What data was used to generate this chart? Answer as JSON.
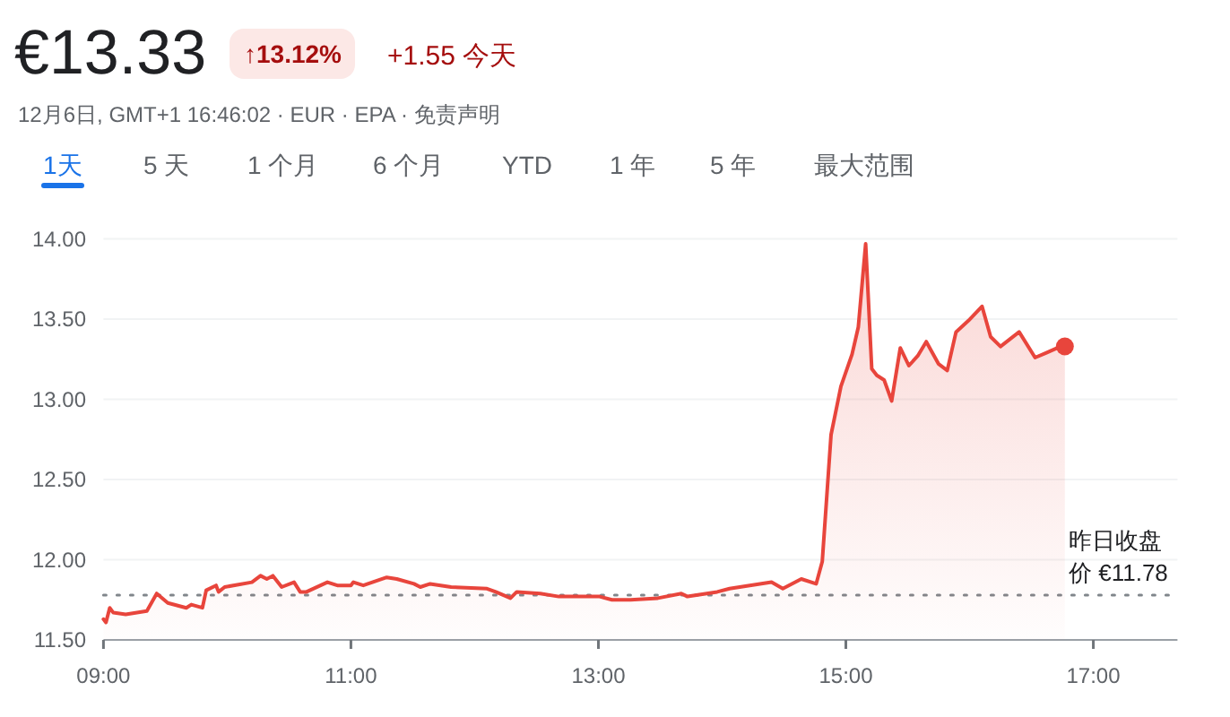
{
  "chart_data": {
    "type": "area",
    "title": "€13.33",
    "subtitle": "12月6日, GMT+1 16:46:02 · EUR · EPA · 免责声明",
    "annotations": [
      "↑13.12%",
      "+1.55 今天",
      "1天",
      "5 天",
      "1 个月",
      "6 个月",
      "YTD",
      "1 年",
      "5 年",
      "最大范围"
    ],
    "x": [
      9.0,
      9.02,
      9.05,
      9.08,
      9.18,
      9.35,
      9.43,
      9.52,
      9.67,
      9.71,
      9.8,
      9.83,
      9.91,
      9.93,
      9.98,
      10.2,
      10.27,
      10.32,
      10.37,
      10.44,
      10.54,
      10.59,
      10.64,
      10.81,
      10.89,
      11.0,
      11.02,
      11.1,
      11.29,
      11.37,
      11.51,
      11.56,
      11.64,
      11.81,
      12.1,
      12.17,
      12.29,
      12.34,
      12.53,
      12.68,
      13.01,
      13.11,
      13.26,
      13.48,
      13.67,
      13.72,
      13.96,
      14.06,
      14.4,
      14.49,
      14.64,
      14.76,
      14.81,
      14.88,
      14.96,
      15.05,
      15.1,
      15.16,
      15.21,
      15.25,
      15.31,
      15.37,
      15.44,
      15.51,
      15.58,
      15.65,
      15.75,
      15.82,
      15.89,
      15.99,
      16.1,
      16.17,
      16.25,
      16.4,
      16.53,
      16.62,
      16.71,
      16.77
    ],
    "series": [
      {
        "color": "#e8453c",
        "values": [
          11.63,
          11.61,
          11.7,
          11.67,
          11.66,
          11.68,
          11.79,
          11.73,
          11.7,
          11.72,
          11.7,
          11.81,
          11.84,
          11.8,
          11.83,
          11.86,
          11.9,
          11.88,
          11.9,
          11.83,
          11.86,
          11.8,
          11.8,
          11.86,
          11.84,
          11.84,
          11.86,
          11.84,
          11.89,
          11.88,
          11.85,
          11.83,
          11.85,
          11.83,
          11.82,
          11.8,
          11.76,
          11.8,
          11.79,
          11.77,
          11.77,
          11.75,
          11.75,
          11.76,
          11.79,
          11.77,
          11.8,
          11.82,
          11.86,
          11.82,
          11.88,
          11.85,
          11.99,
          12.78,
          13.08,
          13.28,
          13.45,
          13.97,
          13.19,
          13.15,
          13.12,
          12.99,
          13.32,
          13.21,
          13.27,
          13.36,
          13.22,
          13.18,
          13.42,
          13.49,
          13.58,
          13.39,
          13.33,
          13.42,
          13.26,
          13.29,
          13.32,
          13.33
        ]
      }
    ],
    "xlim": [
      9,
      17.68
    ],
    "ylim": [
      11.5,
      14.0
    ],
    "xticks": [
      {
        "value": 9,
        "label": "09:00"
      },
      {
        "value": 11,
        "label": "11:00"
      },
      {
        "value": 13,
        "label": "13:00"
      },
      {
        "value": 15,
        "label": "15:00"
      },
      {
        "value": 17,
        "label": "17:00"
      }
    ],
    "yticks": [
      {
        "value": 11.5,
        "label": "11.50"
      },
      {
        "value": 12,
        "label": "12.00"
      },
      {
        "value": 12.5,
        "label": "12.50"
      },
      {
        "value": 13,
        "label": "13.00"
      },
      {
        "value": 13.5,
        "label": "13.50"
      },
      {
        "value": 14,
        "label": "14.00"
      }
    ],
    "grid": "y",
    "ref_lines": [
      {
        "axis": "y",
        "value": 11.78,
        "label": "昨日收盘价 €11.78",
        "line_style": "dotted"
      }
    ]
  }
}
